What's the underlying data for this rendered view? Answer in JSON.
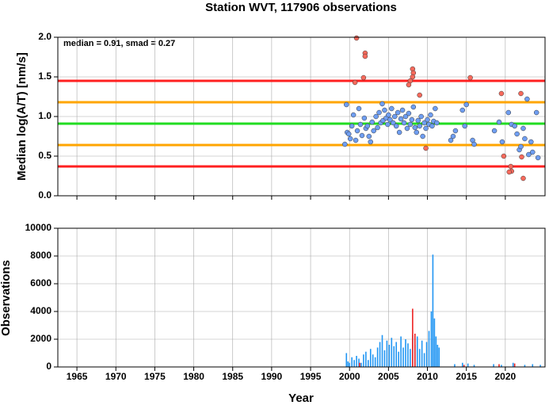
{
  "chart_data": [
    {
      "type": "scatter",
      "title": "Station WVT, 117906 observations",
      "ylabel": "Median log(A/T) [nm/s]",
      "annotation": "median = 0.91, smad = 0.27",
      "xlim": [
        1962.55,
        2025.1
      ],
      "ylim": [
        0,
        2
      ],
      "yticks": [
        {
          "value": 0,
          "label": "0.0"
        },
        {
          "value": 0.5,
          "label": "0.5"
        },
        {
          "value": 1,
          "label": "1.0"
        },
        {
          "value": 1.5,
          "label": "1.5"
        },
        {
          "value": 2,
          "label": "2.0"
        }
      ],
      "grid": true,
      "reference_lines": [
        {
          "value": 1.45,
          "color": "#ff2020"
        },
        {
          "value": 1.18,
          "color": "#ffa500"
        },
        {
          "value": 0.91,
          "color": "#22dd22"
        },
        {
          "value": 0.64,
          "color": "#ffa500"
        },
        {
          "value": 0.37,
          "color": "#ff2020"
        }
      ],
      "series": [
        {
          "color": "#6f9ef2",
          "x": [
            1999.4,
            1999.6,
            1999.7,
            1999.9,
            2000.1,
            2000.3,
            2000.5,
            2000.8,
            2001.0,
            2001.2,
            2001.4,
            2001.6,
            2001.9,
            2002.1,
            2002.3,
            2002.5,
            2002.7,
            2002.9,
            2003.1,
            2003.4,
            2003.6,
            2003.8,
            2004.0,
            2004.2,
            2004.3,
            2004.5,
            2004.7,
            2004.9,
            2005.0,
            2005.2,
            2005.4,
            2005.6,
            2005.8,
            2006.0,
            2006.2,
            2006.4,
            2006.6,
            2006.8,
            2007.0,
            2007.2,
            2007.4,
            2007.6,
            2007.8,
            2008.0,
            2008.2,
            2008.4,
            2008.6,
            2008.8,
            2009.0,
            2009.2,
            2009.4,
            2009.6,
            2009.8,
            2010.0,
            2010.2,
            2010.4,
            2010.6,
            2010.8,
            2011.0,
            2011.2,
            2013.0,
            2013.3,
            2013.6,
            2014.5,
            2014.8,
            2015.0,
            2015.8,
            2016.0,
            2018.6,
            2019.2,
            2019.6,
            2020.4,
            2020.8,
            2021.2,
            2021.5,
            2021.8,
            2022.0,
            2022.3,
            2022.5,
            2022.8,
            2023.0,
            2023.3,
            2023.5,
            2024.0,
            2024.2
          ],
          "values": [
            0.65,
            1.15,
            0.8,
            0.78,
            0.72,
            0.88,
            1.02,
            0.7,
            0.82,
            1.1,
            0.9,
            0.76,
            0.98,
            0.85,
            0.88,
            0.75,
            0.68,
            0.93,
            0.82,
            1.0,
            0.86,
            1.05,
            0.92,
            1.16,
            0.95,
            1.08,
            0.98,
            0.9,
            1.02,
            0.96,
            1.1,
            0.92,
            1.0,
            0.88,
            1.05,
            0.8,
            0.97,
            1.08,
            0.92,
            1.0,
            0.85,
            1.04,
            0.9,
            0.96,
            1.12,
            0.86,
            0.8,
            0.95,
            0.88,
            1.0,
            0.75,
            0.92,
            0.85,
            0.96,
            0.9,
            1.02,
            0.88,
            0.94,
            1.1,
            0.92,
            0.7,
            0.75,
            0.82,
            1.08,
            0.88,
            1.15,
            0.7,
            0.65,
            0.82,
            0.93,
            0.68,
            1.05,
            0.9,
            0.88,
            0.78,
            0.58,
            0.62,
            0.85,
            0.72,
            1.22,
            0.52,
            0.68,
            0.55,
            1.05,
            0.48
          ]
        },
        {
          "color": "#f86a5c",
          "x": [
            2000.9,
            2002.0,
            2002.0,
            2001.8,
            2000.7,
            2008.1,
            2008.2,
            2008.1,
            2007.8,
            2007.6,
            2009.0,
            2015.5,
            2019.5,
            2022.0,
            2009.8,
            2022.3,
            2019.8,
            2020.7,
            2020.8,
            2020.5,
            2022.1
          ],
          "values": [
            1.99,
            1.8,
            1.76,
            1.49,
            1.43,
            1.6,
            1.55,
            1.5,
            1.45,
            1.4,
            1.27,
            1.49,
            1.29,
            1.29,
            0.6,
            0.22,
            0.5,
            0.37,
            0.31,
            0.3,
            0.49
          ]
        }
      ]
    },
    {
      "type": "histogram",
      "xlabel": "Year",
      "ylabel": "Observations",
      "xlim": [
        1962.55,
        2025.1
      ],
      "xticks": [
        1965,
        1970,
        1975,
        1980,
        1985,
        1990,
        1995,
        2000,
        2005,
        2010,
        2015,
        2020
      ],
      "ylim": [
        0,
        10000
      ],
      "yticks": [
        0,
        2000,
        4000,
        6000,
        8000,
        10000
      ],
      "grid": true,
      "series": [
        {
          "color": "#2196f3",
          "x": [
            1999.6,
            1999.8,
            2000.0,
            2000.3,
            2000.6,
            2000.9,
            2001.2,
            2001.5,
            2001.8,
            2002.1,
            2002.4,
            2002.7,
            2003.0,
            2003.3,
            2003.6,
            2003.9,
            2004.2,
            2004.5,
            2004.8,
            2005.1,
            2005.4,
            2005.7,
            2006.0,
            2006.3,
            2006.6,
            2006.9,
            2007.2,
            2007.5,
            2007.8,
            2008.1,
            2008.4,
            2008.7,
            2009.0,
            2009.3,
            2009.6,
            2009.9,
            2010.2,
            2010.5,
            2010.7,
            2010.9,
            2011.1,
            2011.3,
            2011.5,
            2013.5,
            2014.5,
            2015.2,
            2016.0,
            2018.5,
            2019.5,
            2021.0,
            2022.5,
            2023.5,
            2024.5
          ],
          "values": [
            1000,
            400,
            300,
            700,
            500,
            800,
            600,
            300,
            900,
            1100,
            500,
            1300,
            900,
            700,
            1400,
            1800,
            2300,
            1200,
            1900,
            1600,
            2100,
            1500,
            1800,
            1100,
            2200,
            1400,
            2000,
            1700,
            1300,
            2300,
            1600,
            2200,
            1300,
            1900,
            1000,
            1800,
            2600,
            4000,
            8100,
            3500,
            2200,
            1600,
            1400,
            200,
            300,
            250,
            150,
            200,
            150,
            300,
            150,
            200,
            150
          ]
        },
        {
          "color": "#ee2222",
          "x": [
            2001.3,
            2008.1,
            2008.4,
            2014.7,
            2019.2,
            2021.2
          ],
          "values": [
            300,
            4200,
            2400,
            150,
            200,
            250
          ]
        }
      ]
    }
  ]
}
